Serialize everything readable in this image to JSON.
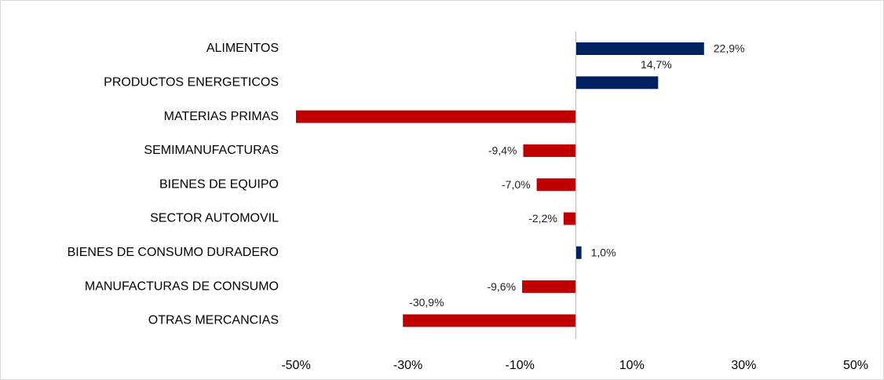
{
  "chart_data": {
    "type": "bar",
    "orientation": "horizontal",
    "categories": [
      "ALIMENTOS",
      "PRODUCTOS ENERGETICOS",
      "MATERIAS PRIMAS",
      "SEMIMANUFACTURAS",
      "BIENES DE EQUIPO",
      "SECTOR AUTOMOVIL",
      "BIENES DE CONSUMO DURADERO",
      "MANUFACTURAS DE CONSUMO",
      "OTRAS MERCANCIAS"
    ],
    "values": [
      22.9,
      14.7,
      -50,
      -9.4,
      -7.0,
      -2.2,
      1.0,
      -9.6,
      -30.9
    ],
    "value_labels": [
      "22,9%",
      "14,7%",
      null,
      "-9,4%",
      "-7,0%",
      "-2,2%",
      "1,0%",
      "-9,6%",
      "-30,9%"
    ],
    "positive_color": "#002060",
    "negative_color": "#c00000",
    "xlim": [
      -50,
      50
    ],
    "xticks": [
      {
        "value": -50,
        "label": "-50%"
      },
      {
        "value": -30,
        "label": "-30%"
      },
      {
        "value": -10,
        "label": "-10%"
      },
      {
        "value": 10,
        "label": "10%"
      },
      {
        "value": 30,
        "label": "30%"
      },
      {
        "value": 50,
        "label": "50%"
      }
    ],
    "grid": false
  }
}
